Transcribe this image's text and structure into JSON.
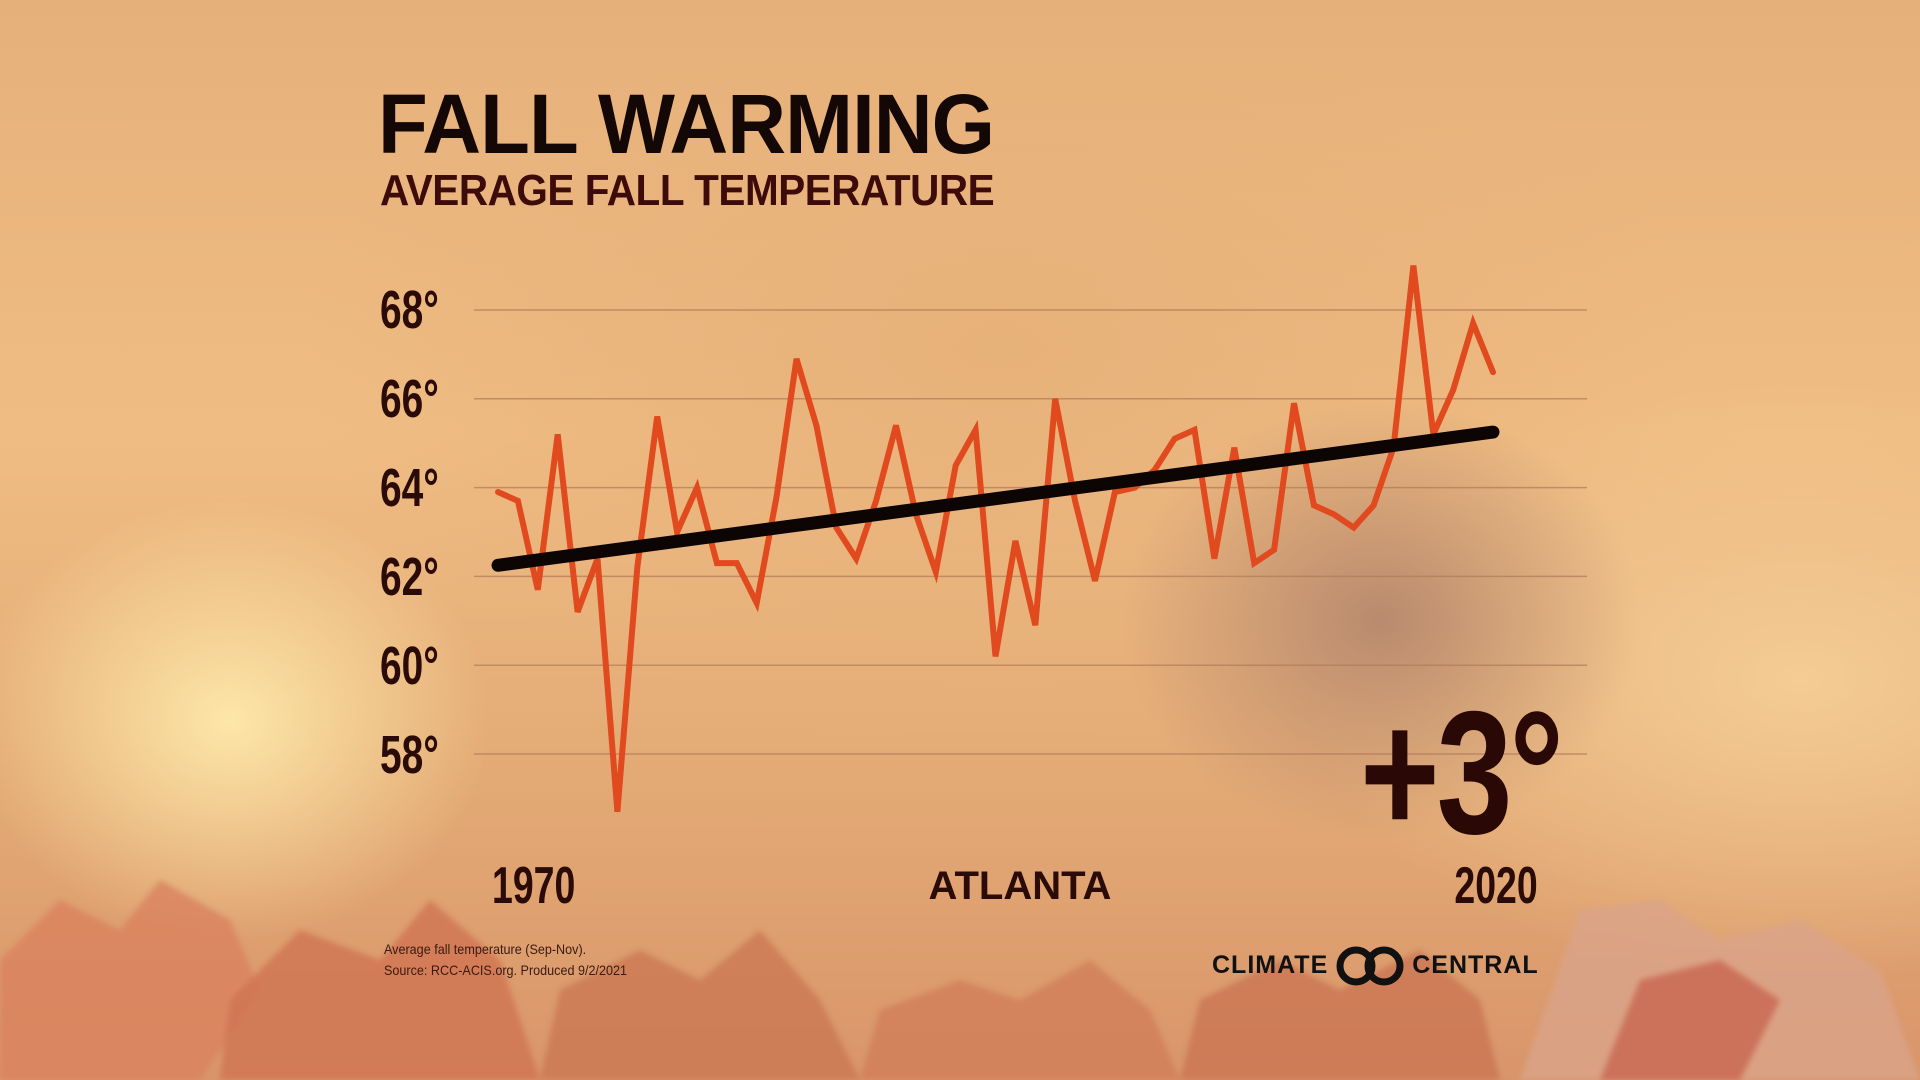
{
  "header": {
    "title": "FALL WARMING",
    "subtitle": "AVERAGE FALL TEMPERATURE"
  },
  "chart_data": {
    "type": "line",
    "title": "FALL WARMING",
    "subtitle": "AVERAGE FALL TEMPERATURE",
    "location": "ATLANTA",
    "xlim": [
      1970,
      2020
    ],
    "ylim": [
      56,
      69
    ],
    "y_ticks": [
      58,
      60,
      62,
      64,
      66,
      68
    ],
    "y_tick_labels": [
      "58°",
      "60°",
      "62°",
      "64°",
      "66°",
      "68°"
    ],
    "x_tick_labels": [
      "1970",
      "2020"
    ],
    "grid": true,
    "x": [
      1970,
      1971,
      1972,
      1973,
      1974,
      1975,
      1976,
      1977,
      1978,
      1979,
      1980,
      1981,
      1982,
      1983,
      1984,
      1985,
      1986,
      1987,
      1988,
      1989,
      1990,
      1991,
      1992,
      1993,
      1994,
      1995,
      1996,
      1997,
      1998,
      1999,
      2000,
      2001,
      2002,
      2003,
      2004,
      2005,
      2006,
      2007,
      2008,
      2009,
      2010,
      2011,
      2012,
      2013,
      2014,
      2015,
      2016,
      2017,
      2018,
      2019,
      2020
    ],
    "series": [
      {
        "values": [
          63.9,
          63.7,
          61.7,
          65.2,
          61.2,
          62.4,
          56.7,
          62.2,
          65.6,
          63.0,
          64.0,
          62.3,
          62.3,
          61.4,
          63.8,
          66.9,
          65.4,
          63.1,
          62.4,
          63.7,
          65.4,
          63.4,
          62.1,
          64.5,
          65.3,
          60.2,
          62.8,
          60.9,
          66.0,
          63.7,
          61.9,
          63.9,
          64.0,
          64.4,
          65.1,
          65.3,
          62.4,
          64.9,
          62.3,
          62.6,
          65.9,
          63.6,
          63.4,
          63.1,
          63.6,
          64.9,
          69.0,
          65.2,
          66.2,
          67.7,
          66.6
        ],
        "color": "#e04a1e"
      }
    ],
    "trend": {
      "start": [
        1970,
        62.25
      ],
      "end": [
        2020,
        65.25
      ],
      "color": "#0d0503"
    },
    "change_label": "+3°"
  },
  "footnote": {
    "line1": "Average fall temperature (Sep-Nov).",
    "line2": "Source: RCC-ACIS.org. Produced 9/2/2021"
  },
  "logo": {
    "left": "CLIMATE",
    "right": "CENTRAL"
  }
}
